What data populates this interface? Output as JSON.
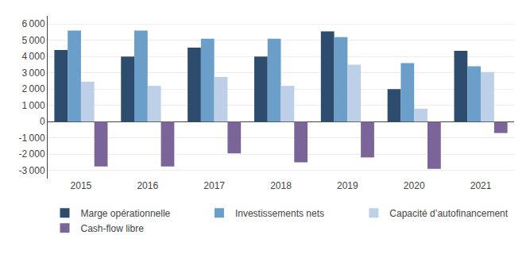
{
  "chart_data": {
    "type": "bar",
    "categories": [
      "2015",
      "2016",
      "2017",
      "2018",
      "2019",
      "2020",
      "2021"
    ],
    "series": [
      {
        "name": "Marge opérationnelle",
        "color": "#2e4d6e",
        "values": [
          4400,
          4000,
          4550,
          4000,
          5550,
          2000,
          4350
        ]
      },
      {
        "name": "Investissements nets",
        "color": "#6b9ec8",
        "values": [
          5600,
          5600,
          5100,
          5100,
          5200,
          3600,
          3400
        ]
      },
      {
        "name": "Capacité d’autofinancement",
        "color": "#bdd0e8",
        "values": [
          2450,
          2200,
          2750,
          2200,
          3500,
          800,
          3050
        ]
      },
      {
        "name": "Cash-flow libre",
        "color": "#7b6498",
        "values": [
          -2750,
          -2750,
          -1950,
          -2500,
          -2200,
          -2900,
          -700
        ]
      }
    ],
    "ylim": [
      -3500,
      6500
    ],
    "yticks": [
      {
        "value": -3000,
        "label": "-3 000"
      },
      {
        "value": -2000,
        "label": "-2 000"
      },
      {
        "value": -1000,
        "label": "-1 000"
      },
      0,
      {
        "value": 1000,
        "label": "1 000"
      },
      {
        "value": 2000,
        "label": "2 000"
      },
      {
        "value": 3000,
        "label": "3 000"
      },
      {
        "value": 4000,
        "label": "4 000"
      },
      {
        "value": 5000,
        "label": "5 000"
      },
      {
        "value": 6000,
        "label": "6 000"
      }
    ],
    "grid": true,
    "legend": "bottom"
  }
}
